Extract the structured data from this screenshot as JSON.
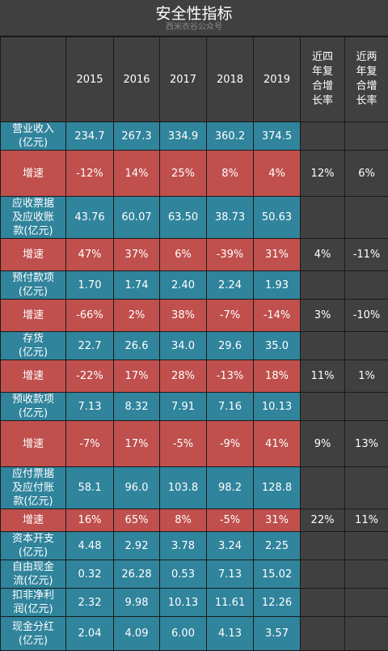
{
  "title": "安全性指标",
  "watermark": "西米衣谷公众号",
  "years": [
    "2015",
    "2016",
    "2017",
    "2018",
    "2019"
  ],
  "growth_headers": [
    "近四\n年复\n合增\n长率",
    "近两\n年复\n合增\n长率"
  ],
  "rows": [
    {
      "label": "营业收入\n(亿元)",
      "values": [
        "234.7",
        "267.3",
        "334.9",
        "360.2",
        "374.5"
      ],
      "growth": [
        "",
        ""
      ],
      "type": "value"
    },
    {
      "label": "增速",
      "values": [
        "-12%",
        "14%",
        "25%",
        "8%",
        "4%"
      ],
      "growth": [
        "12%",
        "6%"
      ],
      "type": "rate"
    },
    {
      "label": "应收票据\n及应收账\n款(亿元)",
      "values": [
        "43.76",
        "60.07",
        "63.50",
        "38.73",
        "50.63"
      ],
      "growth": [
        "",
        ""
      ],
      "type": "value"
    },
    {
      "label": "增速",
      "values": [
        "47%",
        "37%",
        "6%",
        "-39%",
        "31%"
      ],
      "growth": [
        "4%",
        "-11%"
      ],
      "type": "rate"
    },
    {
      "label": "预付款项\n(亿元)",
      "values": [
        "1.70",
        "1.74",
        "2.40",
        "2.24",
        "1.93"
      ],
      "growth": [
        "",
        ""
      ],
      "type": "value"
    },
    {
      "label": "增速",
      "values": [
        "-66%",
        "2%",
        "38%",
        "-7%",
        "-14%"
      ],
      "growth": [
        "3%",
        "-10%"
      ],
      "type": "rate"
    },
    {
      "label": "存货\n(亿元)",
      "values": [
        "22.7",
        "26.6",
        "34.0",
        "29.6",
        "35.0"
      ],
      "growth": [
        "",
        ""
      ],
      "type": "value"
    },
    {
      "label": "增速",
      "values": [
        "-22%",
        "17%",
        "28%",
        "-13%",
        "18%"
      ],
      "growth": [
        "11%",
        "1%"
      ],
      "type": "rate"
    },
    {
      "label": "预收款项\n(亿元)",
      "values": [
        "7.13",
        "8.32",
        "7.91",
        "7.16",
        "10.13"
      ],
      "growth": [
        "",
        ""
      ],
      "type": "value"
    },
    {
      "label": "增速",
      "values": [
        "-7%",
        "17%",
        "-5%",
        "-9%",
        "41%"
      ],
      "growth": [
        "9%",
        "13%"
      ],
      "type": "rate"
    },
    {
      "label": "应付票据\n及应付账\n款(亿元)",
      "values": [
        "58.1",
        "96.0",
        "103.8",
        "98.2",
        "128.8"
      ],
      "growth": [
        "",
        ""
      ],
      "type": "value"
    },
    {
      "label": "增速",
      "values": [
        "16%",
        "65%",
        "8%",
        "-5%",
        "31%"
      ],
      "growth": [
        "22%",
        "11%"
      ],
      "type": "rate"
    },
    {
      "label": "资本开支\n(亿元)",
      "values": [
        "4.48",
        "2.92",
        "3.78",
        "3.24",
        "2.25"
      ],
      "growth": [
        "",
        ""
      ],
      "type": "value"
    },
    {
      "label": "自由现金\n流(亿元)",
      "values": [
        "0.32",
        "26.28",
        "0.53",
        "7.13",
        "15.02"
      ],
      "growth": [
        "",
        ""
      ],
      "type": "value"
    },
    {
      "label": "扣非净利\n润(亿元)",
      "values": [
        "2.32",
        "9.98",
        "10.13",
        "11.61",
        "12.26"
      ],
      "growth": [
        "",
        ""
      ],
      "type": "value"
    },
    {
      "label": "现金分红\n(亿元)",
      "values": [
        "2.04",
        "4.09",
        "6.00",
        "4.13",
        "3.57"
      ],
      "growth": [
        "",
        ""
      ],
      "type": "value"
    }
  ]
}
